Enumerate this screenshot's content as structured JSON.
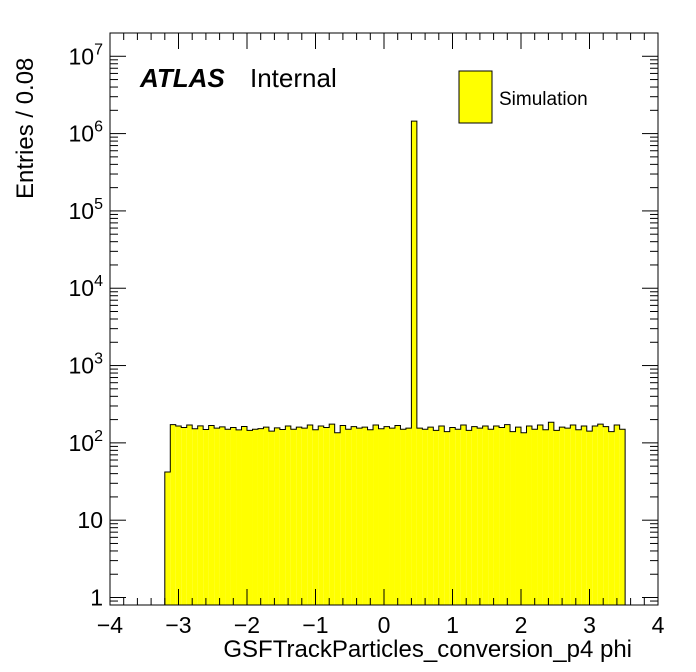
{
  "chart_data": {
    "type": "bar",
    "title": "",
    "xlabel": "GSFTrackParticles_conversion_p4 phi",
    "ylabel": "Entries / 0.08",
    "xlim": [
      -4,
      4
    ],
    "ylim": [
      0.8,
      20000000
    ],
    "log_y": true,
    "grid": false,
    "bar_color": "#ffff00",
    "edge_color": "#000000",
    "bin_width": 0.08,
    "bin_start": -3.2,
    "x_ticks": [
      "−4",
      "−3",
      "−2",
      "−1",
      "0",
      "1",
      "2",
      "3",
      "4"
    ],
    "x_tick_values": [
      -4,
      -3,
      -2,
      -1,
      0,
      1,
      2,
      3,
      4
    ],
    "y_ticks": [
      {
        "value": 1,
        "base": "1",
        "exp": ""
      },
      {
        "value": 10,
        "base": "10",
        "exp": ""
      },
      {
        "value": 100,
        "base": "10",
        "exp": "2"
      },
      {
        "value": 1000,
        "base": "10",
        "exp": "3"
      },
      {
        "value": 10000,
        "base": "10",
        "exp": "4"
      },
      {
        "value": 100000,
        "base": "10",
        "exp": "5"
      },
      {
        "value": 1000000,
        "base": "10",
        "exp": "6"
      },
      {
        "value": 10000000,
        "base": "10",
        "exp": "7"
      }
    ],
    "values": [
      42,
      172,
      165,
      158,
      170,
      152,
      166,
      149,
      168,
      155,
      161,
      150,
      158,
      147,
      163,
      145,
      150,
      153,
      160,
      142,
      156,
      149,
      165,
      150,
      160,
      155,
      170,
      148,
      165,
      158,
      175,
      135,
      168,
      150,
      162,
      155,
      160,
      148,
      170,
      152,
      162,
      155,
      168,
      150,
      155,
      1450000,
      155,
      150,
      160,
      145,
      165,
      140,
      158,
      150,
      170,
      145,
      162,
      155,
      165,
      150,
      165,
      158,
      172,
      140,
      160,
      135,
      165,
      150,
      170,
      148,
      185,
      145,
      160,
      155,
      170,
      148,
      165,
      142,
      165,
      175,
      162,
      140,
      170,
      150
    ],
    "legend": {
      "position": "top-right",
      "entries": [
        {
          "name": "Simulation",
          "color": "#ffff00"
        }
      ]
    },
    "annotations": {
      "experiment": "ATLAS",
      "status": "Internal"
    }
  }
}
